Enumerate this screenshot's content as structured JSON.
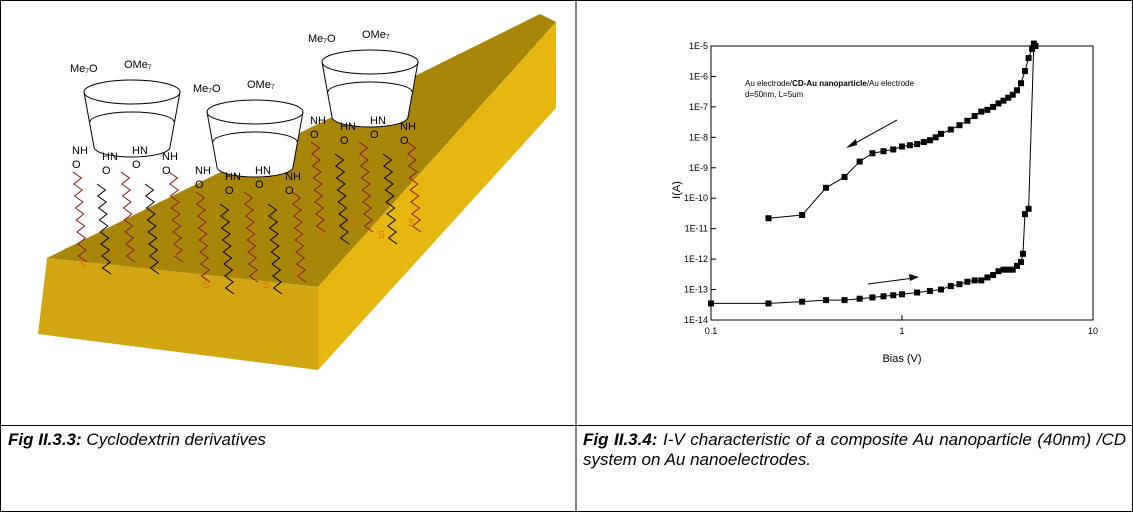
{
  "left_figure": {
    "molecules": [
      {
        "top_left": "Me₇O",
        "top_right": "OMe₇",
        "amide_labels": [
          "NH",
          "HN",
          "HN",
          "NH",
          "O",
          "O",
          "O",
          "O"
        ],
        "sulfur_labels": [
          "S",
          "S",
          "S",
          "S"
        ]
      },
      {
        "top_left": "Me₇O",
        "top_right": "OMe₇",
        "amide_labels": [
          "NH",
          "HN",
          "HN",
          "NH",
          "O",
          "O",
          "O",
          "O"
        ],
        "sulfur_labels": [
          "S",
          "S",
          "S",
          "S"
        ]
      },
      {
        "top_left": "Me₇O",
        "top_right": "OMe₇",
        "amide_labels": [
          "NH",
          "HN",
          "HN",
          "NH",
          "O",
          "O",
          "O",
          "O"
        ],
        "sulfur_labels": [
          "S",
          "S",
          "S",
          "S"
        ]
      }
    ]
  },
  "chart_data": {
    "type": "line",
    "xlabel": "Bias (V)",
    "ylabel": "I(A)",
    "annotation": {
      "line1_start": "Au electrode/",
      "line1_bold": "CD-Au nanoparticle",
      "line1_end": "/Au electrode",
      "line2": "d=50nm, L=5um"
    },
    "xscale": "log",
    "yscale": "log",
    "xlim": [
      0.1,
      10
    ],
    "xticks": [
      0.1,
      1,
      10
    ],
    "ylim": [
      1e-14,
      1e-05
    ],
    "yticks": [
      {
        "value": 1e-14,
        "label": "1E-14"
      },
      {
        "value": 1e-13,
        "label": "1E-13"
      },
      {
        "value": 1e-12,
        "label": "1E-12"
      },
      {
        "value": 1e-11,
        "label": "1E-11"
      },
      {
        "value": 1e-10,
        "label": "1E-10"
      },
      {
        "value": 1e-09,
        "label": "1E-9"
      },
      {
        "value": 1e-08,
        "label": "1E-8"
      },
      {
        "value": 1e-07,
        "label": "1E-7"
      },
      {
        "value": 1e-06,
        "label": "1E-6"
      },
      {
        "value": 1e-05,
        "label": "1E-5"
      }
    ],
    "series": [
      {
        "color": "#000000",
        "x": [
          0.2,
          0.3,
          0.4,
          0.5,
          0.6,
          0.7,
          0.8,
          0.9,
          1.0,
          1.1,
          1.2,
          1.3,
          1.4,
          1.5,
          1.6,
          1.8,
          2.0,
          2.2,
          2.4,
          2.6,
          2.8,
          3.0,
          3.2,
          3.4,
          3.6,
          3.8,
          4.0,
          4.2,
          4.4,
          4.6,
          4.8,
          5.0
        ],
        "values": [
          2.2e-11,
          2.8e-11,
          2.2e-10,
          5e-10,
          1.6e-09,
          3e-09,
          3.5e-09,
          4e-09,
          5e-09,
          5.5e-09,
          6e-09,
          7e-09,
          8e-09,
          1e-08,
          1.3e-08,
          1.8e-08,
          2.5e-08,
          3.5e-08,
          5e-08,
          7e-08,
          8e-08,
          1e-07,
          1.3e-07,
          1.6e-07,
          2e-07,
          2.5e-07,
          3.5e-07,
          6e-07,
          1.5e-06,
          4e-06,
          8e-06,
          1e-05
        ]
      },
      {
        "color": "#000000",
        "x": [
          0.1,
          0.2,
          0.3,
          0.4,
          0.5,
          0.6,
          0.7,
          0.8,
          0.9,
          1.0,
          1.2,
          1.4,
          1.6,
          1.8,
          2.0,
          2.2,
          2.4,
          2.6,
          2.8,
          3.0,
          3.2,
          3.4,
          3.6,
          3.8,
          4.0,
          4.2,
          4.3,
          4.4,
          4.6,
          4.9
        ],
        "values": [
          3.5e-14,
          3.5e-14,
          4e-14,
          4.5e-14,
          4.5e-14,
          5e-14,
          5.5e-14,
          6e-14,
          6.5e-14,
          7e-14,
          8e-14,
          9e-14,
          1e-13,
          1.3e-13,
          1.5e-13,
          1.8e-13,
          2e-13,
          2e-13,
          2.5e-13,
          3e-13,
          4e-13,
          4.5e-13,
          4.5e-13,
          4.5e-13,
          6e-13,
          8e-13,
          1.5e-12,
          3e-11,
          4.5e-11,
          1.2e-05
        ]
      }
    ]
  },
  "captions": [
    {
      "label": "Fig II.3.3:",
      "text": " Cyclodextrin derivatives"
    },
    {
      "label": "Fig II.3.4:",
      "text": " I-V characteristic of a composite Au nanoparticle (40nm) /CD system on Au nanoelectrodes."
    }
  ]
}
